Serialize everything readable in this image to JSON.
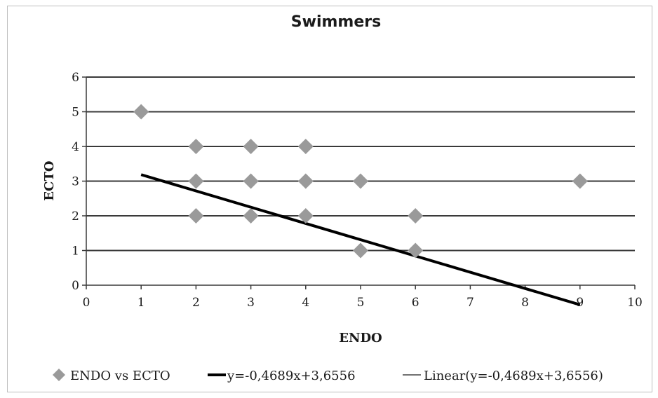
{
  "chart_data": {
    "type": "scatter",
    "title": "Swimmers",
    "xlabel": "ENDO",
    "ylabel": "ECTO",
    "xlim": [
      0,
      10
    ],
    "ylim": [
      0,
      6
    ],
    "xticks": [
      "0",
      "1",
      "2",
      "3",
      "4",
      "5",
      "6",
      "7",
      "8",
      "9",
      "10"
    ],
    "yticks": [
      "0",
      "1",
      "2",
      "3",
      "4",
      "5",
      "6"
    ],
    "grid": "horizontal",
    "legend_position": "bottom",
    "series": [
      {
        "name": "ENDO vs ECTO",
        "type": "scatter",
        "color": "#9a9a9a",
        "marker": "diamond",
        "points": [
          {
            "x": 1,
            "y": 5
          },
          {
            "x": 2,
            "y": 4
          },
          {
            "x": 2,
            "y": 3
          },
          {
            "x": 2,
            "y": 2
          },
          {
            "x": 3,
            "y": 4
          },
          {
            "x": 3,
            "y": 3
          },
          {
            "x": 3,
            "y": 2
          },
          {
            "x": 4,
            "y": 4
          },
          {
            "x": 4,
            "y": 3
          },
          {
            "x": 4,
            "y": 2
          },
          {
            "x": 5,
            "y": 3
          },
          {
            "x": 5,
            "y": 1
          },
          {
            "x": 6,
            "y": 2
          },
          {
            "x": 6,
            "y": 1
          },
          {
            "x": 9,
            "y": 3
          }
        ]
      },
      {
        "name": "y=-0,4689x+3,6556",
        "type": "line",
        "color": "#000000",
        "slope": -0.4689,
        "intercept": 3.6556,
        "x_range": [
          1,
          9
        ]
      },
      {
        "name": "Linear(y=-0,4689x+3,6556)",
        "type": "line",
        "color": "#444444"
      }
    ]
  }
}
